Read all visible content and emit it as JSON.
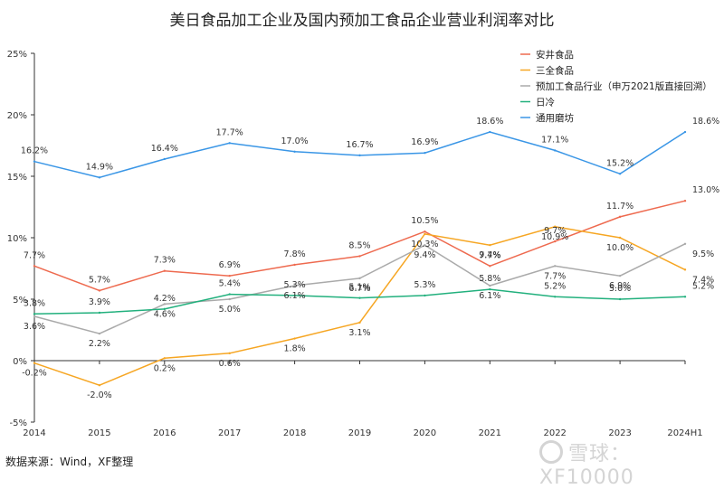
{
  "chart_data": {
    "type": "line",
    "title": "美日食品加工企业及国内预加工食品企业营业利润率对比",
    "x": [
      "2014",
      "2015",
      "2016",
      "2017",
      "2018",
      "2019",
      "2020",
      "2021",
      "2022",
      "2023",
      "2024H1"
    ],
    "ylim": [
      -5,
      25
    ],
    "yticks": [
      "-5%",
      "0%",
      "5%",
      "10%",
      "15%",
      "20%",
      "25%"
    ],
    "grid": false,
    "legend_position": "top-right",
    "series": [
      {
        "name": "安井食品",
        "color": "#ee6a4f",
        "values": [
          7.7,
          5.7,
          7.3,
          6.9,
          7.8,
          8.5,
          10.5,
          7.7,
          9.7,
          11.7,
          13.0
        ],
        "labels": [
          "7.7%",
          "5.7%",
          "7.3%",
          "6.9%",
          "7.8%",
          "8.5%",
          "10.5%",
          "7.7%",
          "9.7%",
          "11.7%",
          "13.0%"
        ]
      },
      {
        "name": "三全食品",
        "color": "#f6a623",
        "values": [
          -0.2,
          -2.0,
          0.2,
          0.6,
          1.8,
          3.1,
          10.3,
          9.4,
          10.9,
          10.0,
          7.4
        ],
        "labels": [
          "-0.2%",
          "-2.0%",
          "0.2%",
          "0.6%",
          "1.8%",
          "3.1%",
          "10.3%",
          "9.4%",
          "10.9%",
          "10.0%",
          "7.4%"
        ]
      },
      {
        "name": "预加工食品行业（申万2021版直接回溯）",
        "color": "#aaaaaa",
        "values": [
          3.6,
          2.2,
          4.6,
          5.0,
          6.1,
          6.7,
          9.4,
          6.1,
          7.7,
          6.9,
          9.5
        ],
        "labels": [
          "3.6%",
          "2.2%",
          "4.6%",
          "5.0%",
          "6.1%",
          "6.7%",
          "9.4%",
          "6.1%",
          "7.7%",
          "6.9%",
          "9.5%"
        ]
      },
      {
        "name": "日冷",
        "color": "#22b07d",
        "values": [
          3.8,
          3.9,
          4.2,
          5.4,
          5.3,
          5.1,
          5.3,
          5.8,
          5.2,
          5.0,
          5.2
        ],
        "labels": [
          "3.8%",
          "3.9%",
          "4.2%",
          "5.4%",
          "5.3%",
          "5.1%",
          "5.3%",
          "5.8%",
          "5.2%",
          "5.0%",
          "5.2%"
        ]
      },
      {
        "name": "通用磨坊",
        "color": "#3a96e6",
        "values": [
          16.2,
          14.9,
          16.4,
          17.7,
          17.0,
          16.7,
          16.9,
          18.6,
          17.1,
          15.2,
          18.6
        ],
        "labels": [
          "16.2%",
          "14.9%",
          "16.4%",
          "17.7%",
          "17.0%",
          "16.7%",
          "16.9%",
          "18.6%",
          "17.1%",
          "15.2%",
          "18.6%"
        ]
      }
    ]
  },
  "source": "数据来源：Wind，XF整理",
  "watermark": "雪球：XF10000"
}
